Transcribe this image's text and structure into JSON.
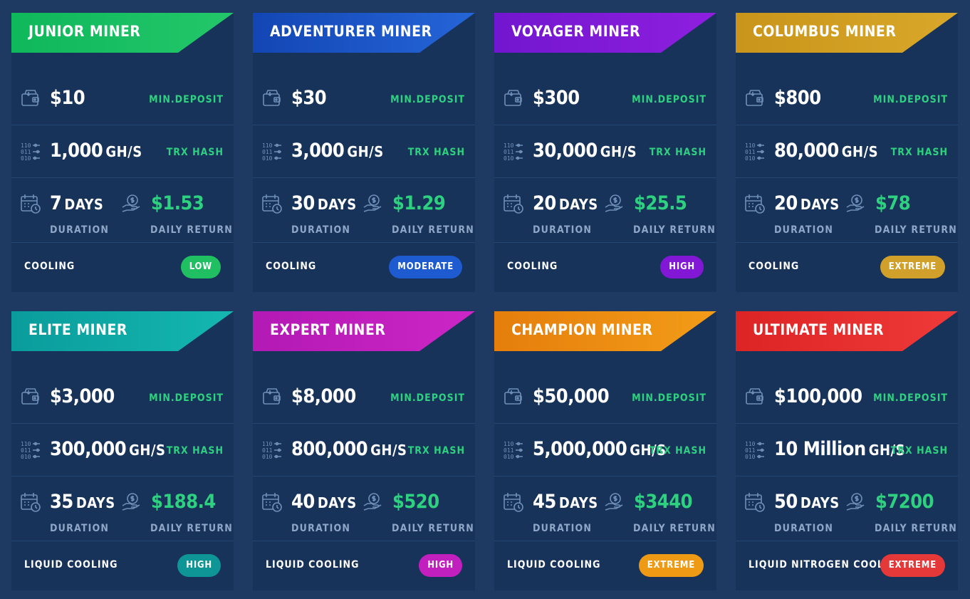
{
  "labels": {
    "min_deposit": "MIN.DEPOSIT",
    "trx_hash": "TRX HASH",
    "hash_unit": "GH/S",
    "days_unit": "DAYS",
    "duration": "DURATION",
    "daily_return": "DAILY RETURN"
  },
  "icons": {
    "deposit": "wallet-icon",
    "hash": "binary-chip-icon",
    "duration": "calendar-clock-icon",
    "return": "money-hand-icon"
  },
  "cards": [
    {
      "title": "JUNIOR MINER",
      "deposit": "$10",
      "hash": "1,000",
      "days": "7",
      "daily_return": "$1.53",
      "cooling": "COOLING",
      "level": "LOW",
      "color_a": "#0fb85b",
      "color_b": "#23c76a",
      "pill_color": "#1fbf62"
    },
    {
      "title": "ADVENTURER MINER",
      "deposit": "$30",
      "hash": "3,000",
      "days": "30",
      "daily_return": "$1.29",
      "cooling": "COOLING",
      "level": "MODERATE",
      "color_a": "#1346b4",
      "color_b": "#2565d8",
      "pill_color": "#1f5bd0"
    },
    {
      "title": "VOYAGER MINER",
      "deposit": "$300",
      "hash": "30,000",
      "days": "20",
      "daily_return": "$25.5",
      "cooling": "COOLING",
      "level": "HIGH",
      "color_a": "#7216cf",
      "color_b": "#8f1fe0",
      "pill_color": "#8218d6"
    },
    {
      "title": "COLUMBUS MINER",
      "deposit": "$800",
      "hash": "80,000",
      "days": "20",
      "daily_return": "$78",
      "cooling": "COOLING",
      "level": "EXTREME",
      "color_a": "#c9951a",
      "color_b": "#d9a82a",
      "pill_color": "#d0a02a"
    },
    {
      "title": "ELITE MINER",
      "deposit": "$3,000",
      "hash": "300,000",
      "days": "35",
      "daily_return": "$188.4",
      "cooling": "LIQUID COOLING",
      "level": "HIGH",
      "color_a": "#0a9c9c",
      "color_b": "#14b7b0",
      "pill_color": "#0e9696"
    },
    {
      "title": "EXPERT MINER",
      "deposit": "$8,000",
      "hash": "800,000",
      "days": "40",
      "daily_return": "$520",
      "cooling": "LIQUID COOLING",
      "level": "HIGH",
      "color_a": "#b319b4",
      "color_b": "#cc26c6",
      "pill_color": "#c21fbf"
    },
    {
      "title": "CHAMPION MINER",
      "deposit": "$50,000",
      "hash": "5,000,000",
      "days": "45",
      "daily_return": "$3440",
      "cooling": "LIQUID COOLING",
      "level": "EXTREME",
      "color_a": "#e57e0c",
      "color_b": "#f39c18",
      "pill_color": "#ee9a14"
    },
    {
      "title": "ULTIMATE MINER",
      "deposit": "$100,000",
      "hash": "10 Million",
      "days": "50",
      "daily_return": "$7200",
      "cooling": "LIQUID NITROGEN COOLING",
      "level": "EXTREME",
      "color_a": "#dd2424",
      "color_b": "#ef3a3a",
      "pill_color": "#e53838"
    }
  ]
}
